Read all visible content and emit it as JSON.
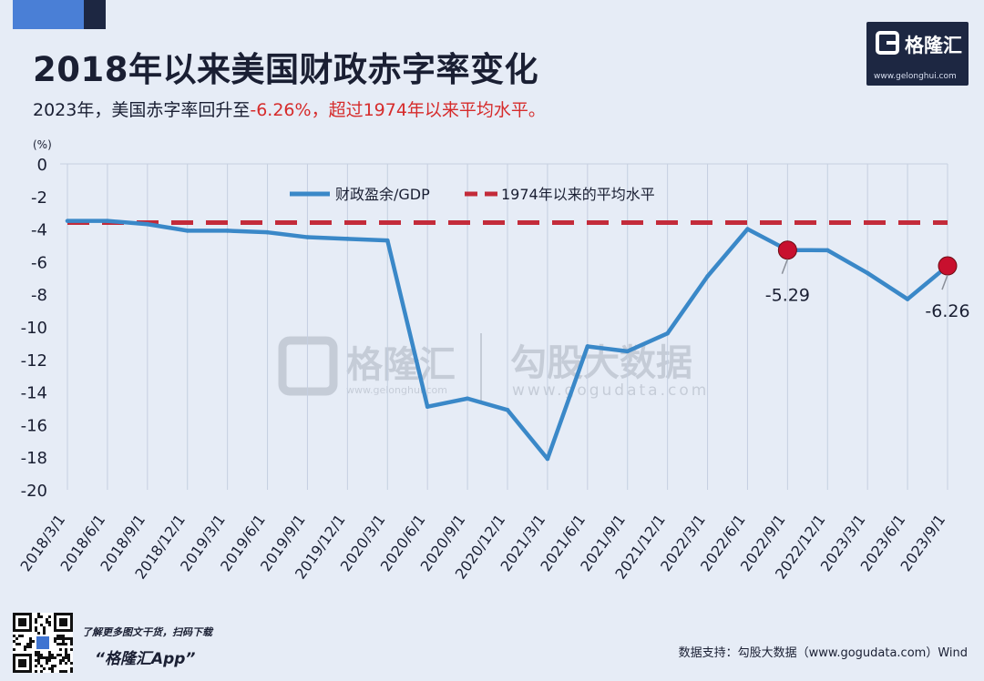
{
  "header": {
    "title": "2018年以来美国财政赤字率变化",
    "subtitle_prefix": "2023年，美国赤字率回升至",
    "subtitle_highlight": "-6.26%，超过1974年以来平均水平。"
  },
  "logo": {
    "name": "格隆汇",
    "url": "www.gelonghui.com"
  },
  "watermark": {
    "left_name": "格隆汇",
    "left_url": "www.gelonghui.com",
    "right_name": "勾股大数据",
    "right_url": "www.gogudata.com"
  },
  "footer": {
    "tip": "了解更多图文干货，扫码下载",
    "app": "“格隆汇App”",
    "source": "数据支持：勾股大数据（www.gogudata.com）Wind"
  },
  "colors": {
    "line": "#3a88c8",
    "average": "#c32b3a",
    "marker": "#c8102e",
    "grid": "#c5cfe0",
    "brand": "#1d2742",
    "highlight": "#d62b2b"
  },
  "chart_data": {
    "type": "line",
    "ylabel": "(%)",
    "ylim": [
      -20,
      0
    ],
    "yticks": [
      0,
      -2,
      -4,
      -6,
      -8,
      -10,
      -12,
      -14,
      -16,
      -18,
      -20
    ],
    "grid": "vertical",
    "legend_position": "top-center",
    "categories": [
      "2018/3/1",
      "2018/6/1",
      "2018/9/1",
      "2018/12/1",
      "2019/3/1",
      "2019/6/1",
      "2019/9/1",
      "2019/12/1",
      "2020/3/1",
      "2020/6/1",
      "2020/9/1",
      "2020/12/1",
      "2021/3/1",
      "2021/6/1",
      "2021/9/1",
      "2021/12/1",
      "2022/3/1",
      "2022/6/1",
      "2022/9/1",
      "2022/12/1",
      "2023/3/1",
      "2023/6/1",
      "2023/9/1"
    ],
    "series": [
      {
        "name": "财政盈余/GDP",
        "values": [
          -3.5,
          -3.5,
          -3.7,
          -4.1,
          -4.1,
          -4.2,
          -4.5,
          -4.6,
          -4.7,
          -14.9,
          -14.4,
          -15.1,
          -18.1,
          -11.2,
          -11.5,
          -10.4,
          -6.9,
          -4.0,
          -5.29,
          -5.3,
          -6.7,
          -8.3,
          -6.26
        ],
        "color": "#3a88c8"
      },
      {
        "name": "1974年以来的平均水平",
        "values": [
          -3.6,
          -3.6,
          -3.6,
          -3.6,
          -3.6,
          -3.6,
          -3.6,
          -3.6,
          -3.6,
          -3.6,
          -3.6,
          -3.6,
          -3.6,
          -3.6,
          -3.6,
          -3.6,
          -3.6,
          -3.6,
          -3.6,
          -3.6,
          -3.6,
          -3.6,
          -3.6
        ],
        "color": "#c32b3a",
        "style": "dashed"
      }
    ],
    "annotations": [
      {
        "category": "2022/9/1",
        "value": -5.29,
        "label": "-5.29"
      },
      {
        "category": "2023/9/1",
        "value": -6.26,
        "label": "-6.26"
      }
    ]
  }
}
